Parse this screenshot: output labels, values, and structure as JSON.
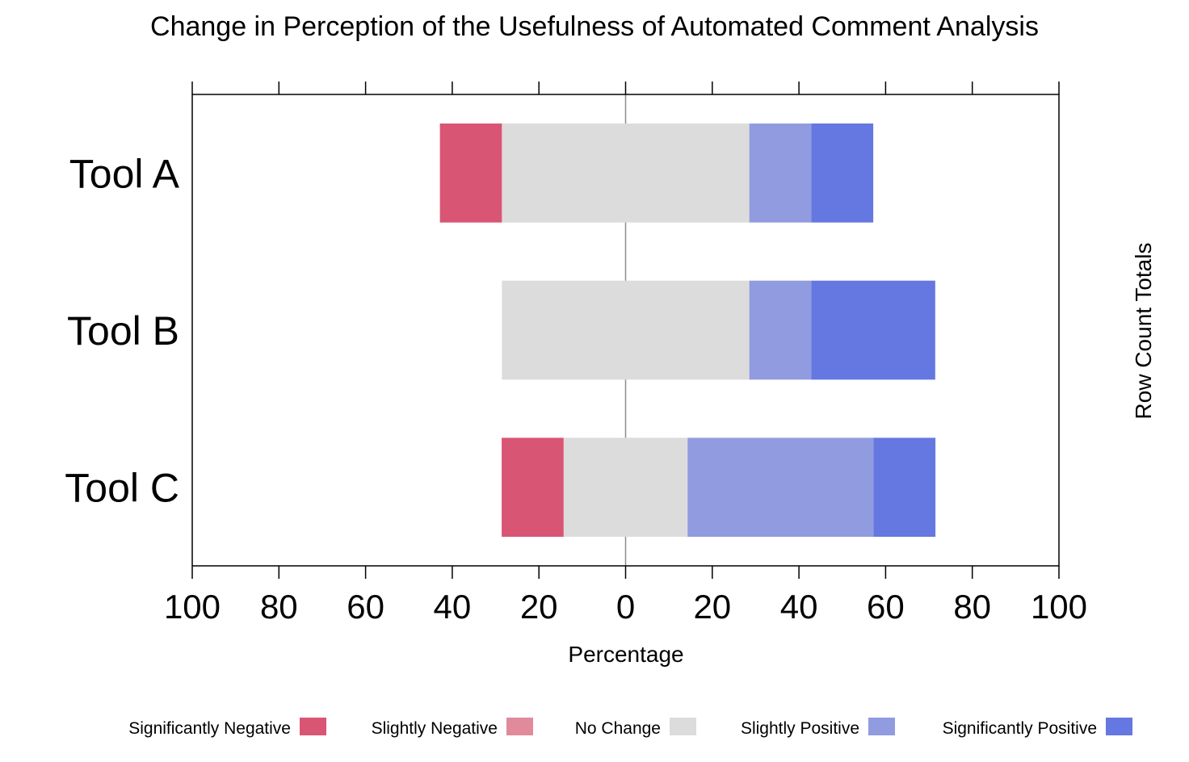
{
  "chart_data": {
    "type": "bar",
    "orientation": "horizontal",
    "stacked": "diverging",
    "title": "Change in Perception of the Usefulness of Automated Comment Analysis",
    "xlabel": "Percentage",
    "right_label": "Row Count Totals",
    "xlim": [
      -100,
      100
    ],
    "x_ticks": [
      -100,
      -80,
      -60,
      -40,
      -20,
      0,
      20,
      40,
      60,
      80,
      100
    ],
    "x_tick_labels": [
      "100",
      "80",
      "60",
      "40",
      "20",
      "0",
      "20",
      "40",
      "60",
      "80",
      "100"
    ],
    "categories": [
      "Tool A",
      "Tool B",
      "Tool C"
    ],
    "neutral_category": "No Change",
    "series": [
      {
        "name": "Significantly Negative",
        "color": "#D95574",
        "values": [
          14.3,
          0,
          14.3
        ]
      },
      {
        "name": "Slightly Negative",
        "color": "#E18A9C",
        "values": [
          0,
          0,
          0
        ]
      },
      {
        "name": "No Change",
        "color": "#DCDCDC",
        "values": [
          57.1,
          57.1,
          28.6
        ]
      },
      {
        "name": "Slightly Positive",
        "color": "#919BDF",
        "values": [
          14.3,
          14.3,
          42.9
        ]
      },
      {
        "name": "Significantly Positive",
        "color": "#6577E1",
        "values": [
          14.3,
          28.6,
          14.3
        ]
      }
    ],
    "grid": false,
    "legend_position": "bottom"
  }
}
